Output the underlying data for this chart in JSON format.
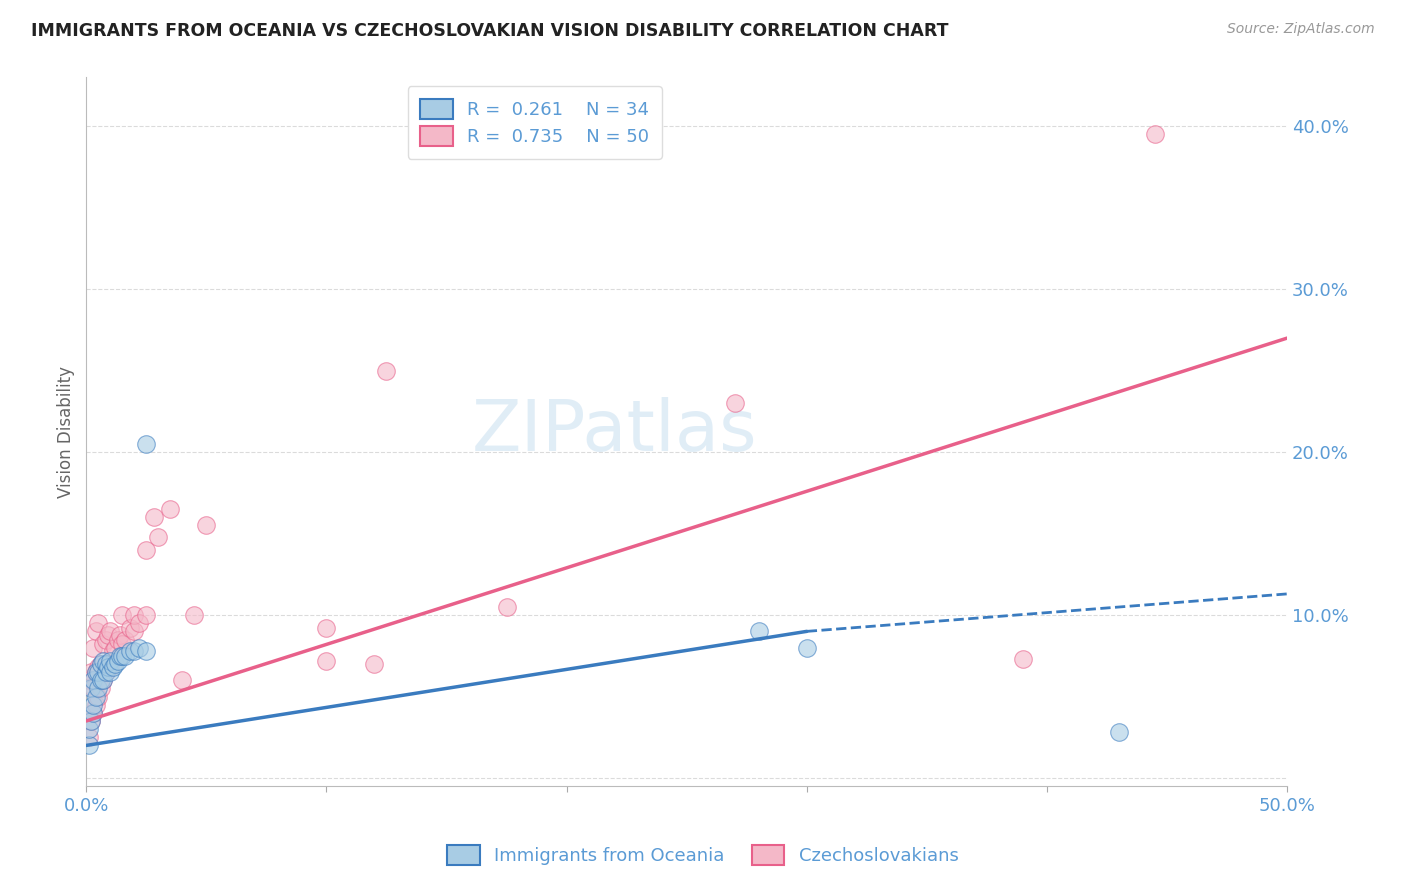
{
  "title": "IMMIGRANTS FROM OCEANIA VS CZECHOSLOVAKIAN VISION DISABILITY CORRELATION CHART",
  "source": "Source: ZipAtlas.com",
  "ylabel": "Vision Disability",
  "ytick_values": [
    0.0,
    0.1,
    0.2,
    0.3,
    0.4
  ],
  "xlim": [
    0.0,
    0.5
  ],
  "ylim": [
    -0.005,
    0.43
  ],
  "blue_R": 0.261,
  "blue_N": 34,
  "pink_R": 0.735,
  "pink_N": 50,
  "blue_color": "#a8cce4",
  "pink_color": "#f4b8c8",
  "blue_line_color": "#3a7bbf",
  "pink_line_color": "#e8608a",
  "grid_color": "#cccccc",
  "title_color": "#222222",
  "label_color": "#5b9bd5",
  "watermark": "ZIPatlas",
  "blue_line_x0": 0.0,
  "blue_line_y0": 0.02,
  "blue_line_x1": 0.3,
  "blue_line_y1": 0.09,
  "blue_line_dash_x1": 0.5,
  "blue_line_dash_y1": 0.113,
  "pink_line_x0": 0.0,
  "pink_line_y0": 0.035,
  "pink_line_x1": 0.5,
  "pink_line_y1": 0.27,
  "blue_scatter_x": [
    0.001,
    0.001,
    0.002,
    0.002,
    0.003,
    0.003,
    0.003,
    0.004,
    0.004,
    0.005,
    0.005,
    0.006,
    0.006,
    0.007,
    0.007,
    0.008,
    0.008,
    0.009,
    0.01,
    0.01,
    0.011,
    0.012,
    0.013,
    0.014,
    0.015,
    0.016,
    0.018,
    0.02,
    0.022,
    0.025,
    0.025,
    0.28,
    0.3,
    0.43
  ],
  "blue_scatter_y": [
    0.02,
    0.03,
    0.035,
    0.055,
    0.04,
    0.045,
    0.06,
    0.05,
    0.065,
    0.055,
    0.065,
    0.06,
    0.07,
    0.06,
    0.072,
    0.065,
    0.07,
    0.068,
    0.065,
    0.072,
    0.068,
    0.07,
    0.072,
    0.075,
    0.075,
    0.075,
    0.078,
    0.078,
    0.08,
    0.205,
    0.078,
    0.09,
    0.08,
    0.028
  ],
  "pink_scatter_x": [
    0.001,
    0.001,
    0.002,
    0.002,
    0.003,
    0.003,
    0.003,
    0.004,
    0.004,
    0.004,
    0.005,
    0.005,
    0.005,
    0.006,
    0.006,
    0.007,
    0.007,
    0.008,
    0.008,
    0.009,
    0.009,
    0.01,
    0.01,
    0.011,
    0.012,
    0.013,
    0.014,
    0.015,
    0.015,
    0.016,
    0.018,
    0.02,
    0.02,
    0.022,
    0.025,
    0.025,
    0.028,
    0.03,
    0.035,
    0.04,
    0.045,
    0.05,
    0.1,
    0.1,
    0.12,
    0.125,
    0.175,
    0.27,
    0.39,
    0.445
  ],
  "pink_scatter_y": [
    0.025,
    0.06,
    0.035,
    0.065,
    0.04,
    0.055,
    0.08,
    0.045,
    0.065,
    0.09,
    0.05,
    0.068,
    0.095,
    0.055,
    0.07,
    0.06,
    0.082,
    0.065,
    0.085,
    0.07,
    0.088,
    0.068,
    0.09,
    0.078,
    0.08,
    0.085,
    0.088,
    0.082,
    0.1,
    0.085,
    0.092,
    0.09,
    0.1,
    0.095,
    0.1,
    0.14,
    0.16,
    0.148,
    0.165,
    0.06,
    0.1,
    0.155,
    0.072,
    0.092,
    0.07,
    0.25,
    0.105,
    0.23,
    0.073,
    0.395
  ],
  "legend_label_blue": "Immigrants from Oceania",
  "legend_label_pink": "Czechoslovakians"
}
